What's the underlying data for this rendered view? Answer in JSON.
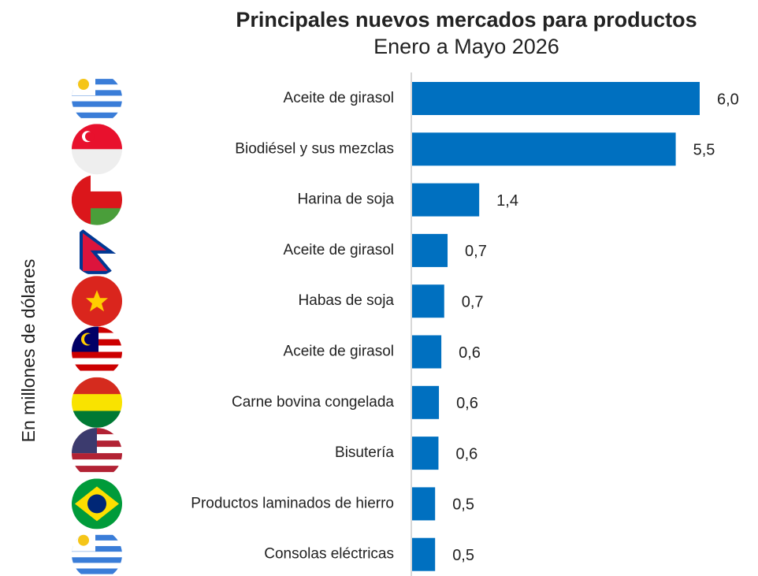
{
  "chart_data": {
    "type": "bar",
    "orientation": "horizontal",
    "title": "Principales nuevos mercados para productos",
    "subtitle": "Enero a Mayo 2026",
    "y_axis_label": "En millones de dólares",
    "categories": [
      "Aceite de girasol",
      "Biodiésel y sus mezclas",
      "Harina de soja",
      "Aceite de girasol",
      "Habas de soja",
      "Aceite de girasol",
      "Carne bovina congelada",
      "Bisutería",
      "Productos laminados de hierro",
      "Consolas eléctricas"
    ],
    "values": [
      6.0,
      5.5,
      1.4,
      0.74,
      0.67,
      0.61,
      0.56,
      0.55,
      0.48,
      0.48
    ],
    "value_labels": [
      "6,0",
      "5,5",
      "1,4",
      "0,7",
      "0,7",
      "0,6",
      "0,6",
      "0,6",
      "0,5",
      "0,5"
    ],
    "color": "#0070c0",
    "xlim": [
      0,
      6
    ]
  }
}
